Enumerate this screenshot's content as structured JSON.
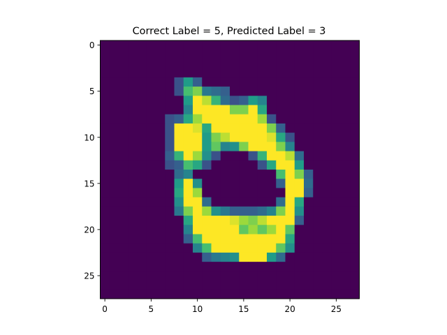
{
  "chart_data": {
    "type": "heatmap",
    "title": "Correct Label = 5, Predicted Label = 3",
    "xlabel": "",
    "ylabel": "",
    "xlim": [
      -0.5,
      27.5
    ],
    "ylim": [
      27.5,
      -0.5
    ],
    "xticks": [
      0,
      5,
      10,
      15,
      20,
      25
    ],
    "yticks": [
      0,
      5,
      10,
      15,
      20,
      25
    ],
    "xtick_labels": [
      "0",
      "5",
      "10",
      "15",
      "20",
      "25"
    ],
    "ytick_labels": [
      "0",
      "5",
      "10",
      "15",
      "20",
      "25"
    ],
    "grid": false,
    "colormap": "viridis",
    "value_range": [
      0,
      1
    ],
    "colormap_stops": [
      "#440154",
      "#46327e",
      "#365c8d",
      "#277f8e",
      "#1fa187",
      "#4ac16d",
      "#a0da39",
      "#fde725"
    ],
    "rows": 28,
    "cols": 28,
    "nonzero_pixels": [
      [
        4,
        8,
        0.25
      ],
      [
        4,
        9,
        0.55
      ],
      [
        4,
        10,
        0.3
      ],
      [
        5,
        8,
        0.25
      ],
      [
        5,
        9,
        0.7
      ],
      [
        5,
        10,
        0.8
      ],
      [
        5,
        11,
        0.4
      ],
      [
        5,
        12,
        0.35
      ],
      [
        5,
        13,
        0.3
      ],
      [
        6,
        9,
        0.55
      ],
      [
        6,
        10,
        1
      ],
      [
        6,
        11,
        0.9
      ],
      [
        6,
        12,
        0.65
      ],
      [
        6,
        13,
        0.35
      ],
      [
        6,
        14,
        0.25
      ],
      [
        6,
        15,
        0.3
      ],
      [
        6,
        16,
        0.55
      ],
      [
        6,
        17,
        0.45
      ],
      [
        7,
        9,
        0.45
      ],
      [
        7,
        10,
        1
      ],
      [
        7,
        11,
        1
      ],
      [
        7,
        12,
        1
      ],
      [
        7,
        13,
        1
      ],
      [
        7,
        14,
        0.8
      ],
      [
        7,
        15,
        0.8
      ],
      [
        7,
        16,
        1
      ],
      [
        7,
        17,
        0.6
      ],
      [
        8,
        7,
        0.25
      ],
      [
        8,
        8,
        0.3
      ],
      [
        8,
        9,
        0.6
      ],
      [
        8,
        10,
        0.85
      ],
      [
        8,
        11,
        1
      ],
      [
        8,
        12,
        1
      ],
      [
        8,
        13,
        1
      ],
      [
        8,
        14,
        1
      ],
      [
        8,
        15,
        1
      ],
      [
        8,
        16,
        1
      ],
      [
        8,
        17,
        0.85
      ],
      [
        8,
        18,
        0.25
      ],
      [
        9,
        7,
        0.25
      ],
      [
        9,
        8,
        1
      ],
      [
        9,
        9,
        1
      ],
      [
        9,
        10,
        0.95
      ],
      [
        9,
        11,
        0.6
      ],
      [
        9,
        12,
        1
      ],
      [
        9,
        13,
        1
      ],
      [
        9,
        14,
        1
      ],
      [
        9,
        15,
        1
      ],
      [
        9,
        16,
        1
      ],
      [
        9,
        17,
        1
      ],
      [
        9,
        18,
        0.8
      ],
      [
        9,
        19,
        0.3
      ],
      [
        10,
        7,
        0.25
      ],
      [
        10,
        8,
        1
      ],
      [
        10,
        9,
        1
      ],
      [
        10,
        10,
        1
      ],
      [
        10,
        11,
        0.55
      ],
      [
        10,
        12,
        0.8
      ],
      [
        10,
        13,
        0.9
      ],
      [
        10,
        14,
        1
      ],
      [
        10,
        15,
        1
      ],
      [
        10,
        16,
        1
      ],
      [
        10,
        17,
        1
      ],
      [
        10,
        18,
        0.95
      ],
      [
        10,
        19,
        0.6
      ],
      [
        10,
        20,
        0.25
      ],
      [
        11,
        7,
        0.25
      ],
      [
        11,
        8,
        1
      ],
      [
        11,
        9,
        1
      ],
      [
        11,
        10,
        1
      ],
      [
        11,
        11,
        0.55
      ],
      [
        11,
        12,
        0.75
      ],
      [
        11,
        13,
        0.45
      ],
      [
        11,
        14,
        0.5
      ],
      [
        11,
        15,
        0.8
      ],
      [
        11,
        16,
        1
      ],
      [
        11,
        17,
        1
      ],
      [
        11,
        18,
        1
      ],
      [
        11,
        19,
        0.8
      ],
      [
        11,
        20,
        0.45
      ],
      [
        12,
        7,
        0.3
      ],
      [
        12,
        8,
        0.65
      ],
      [
        12,
        9,
        1
      ],
      [
        12,
        10,
        0.85
      ],
      [
        12,
        11,
        0.5
      ],
      [
        12,
        12,
        0.25
      ],
      [
        12,
        16,
        0.25
      ],
      [
        12,
        17,
        0.65
      ],
      [
        12,
        18,
        1
      ],
      [
        12,
        19,
        1
      ],
      [
        12,
        20,
        0.9
      ],
      [
        12,
        21,
        0.35
      ],
      [
        13,
        7,
        0.25
      ],
      [
        13,
        8,
        0.3
      ],
      [
        13,
        9,
        0.7
      ],
      [
        13,
        10,
        0.6
      ],
      [
        13,
        11,
        0.25
      ],
      [
        13,
        17,
        0.25
      ],
      [
        13,
        18,
        0.6
      ],
      [
        13,
        19,
        1
      ],
      [
        13,
        20,
        1
      ],
      [
        13,
        21,
        0.55
      ],
      [
        14,
        8,
        0.35
      ],
      [
        14,
        9,
        0.45
      ],
      [
        14,
        19,
        0.7
      ],
      [
        14,
        20,
        1
      ],
      [
        14,
        21,
        0.8
      ],
      [
        14,
        22,
        0.3
      ],
      [
        15,
        8,
        0.55
      ],
      [
        15,
        9,
        1
      ],
      [
        15,
        10,
        0.5
      ],
      [
        15,
        19,
        0.3
      ],
      [
        15,
        20,
        1
      ],
      [
        15,
        21,
        1
      ],
      [
        15,
        22,
        0.35
      ],
      [
        16,
        8,
        0.6
      ],
      [
        16,
        9,
        1
      ],
      [
        16,
        10,
        0.85
      ],
      [
        16,
        20,
        1
      ],
      [
        16,
        21,
        1
      ],
      [
        16,
        22,
        0.3
      ],
      [
        17,
        8,
        0.5
      ],
      [
        17,
        9,
        1
      ],
      [
        17,
        10,
        1
      ],
      [
        17,
        11,
        0.35
      ],
      [
        17,
        19,
        0.35
      ],
      [
        17,
        20,
        1
      ],
      [
        17,
        21,
        0.6
      ],
      [
        18,
        8,
        0.4
      ],
      [
        18,
        9,
        0.8
      ],
      [
        18,
        10,
        1
      ],
      [
        18,
        11,
        0.85
      ],
      [
        18,
        12,
        0.5
      ],
      [
        18,
        13,
        0.4
      ],
      [
        18,
        14,
        0.3
      ],
      [
        18,
        15,
        0.3
      ],
      [
        18,
        16,
        0.3
      ],
      [
        18,
        17,
        0.35
      ],
      [
        18,
        18,
        0.45
      ],
      [
        18,
        19,
        0.8
      ],
      [
        18,
        20,
        1
      ],
      [
        18,
        21,
        0.5
      ],
      [
        19,
        9,
        0.6
      ],
      [
        19,
        10,
        1
      ],
      [
        19,
        11,
        1
      ],
      [
        19,
        12,
        1
      ],
      [
        19,
        13,
        1
      ],
      [
        19,
        14,
        0.95
      ],
      [
        19,
        15,
        0.85
      ],
      [
        19,
        16,
        0.8
      ],
      [
        19,
        17,
        0.9
      ],
      [
        19,
        18,
        1
      ],
      [
        19,
        19,
        1
      ],
      [
        19,
        20,
        1
      ],
      [
        19,
        21,
        0.3
      ],
      [
        20,
        9,
        0.45
      ],
      [
        20,
        10,
        1
      ],
      [
        20,
        11,
        1
      ],
      [
        20,
        12,
        1
      ],
      [
        20,
        13,
        1
      ],
      [
        20,
        14,
        1
      ],
      [
        20,
        15,
        0.75
      ],
      [
        20,
        16,
        0.85
      ],
      [
        20,
        17,
        0.75
      ],
      [
        20,
        18,
        0.85
      ],
      [
        20,
        19,
        1
      ],
      [
        20,
        20,
        0.75
      ],
      [
        21,
        9,
        0.3
      ],
      [
        21,
        10,
        0.7
      ],
      [
        21,
        11,
        1
      ],
      [
        21,
        12,
        1
      ],
      [
        21,
        13,
        1
      ],
      [
        21,
        14,
        1
      ],
      [
        21,
        15,
        1
      ],
      [
        21,
        16,
        1
      ],
      [
        21,
        17,
        1
      ],
      [
        21,
        18,
        1
      ],
      [
        21,
        19,
        1
      ],
      [
        21,
        20,
        0.6
      ],
      [
        22,
        10,
        0.45
      ],
      [
        22,
        11,
        0.7
      ],
      [
        22,
        12,
        1
      ],
      [
        22,
        13,
        1
      ],
      [
        22,
        14,
        1
      ],
      [
        22,
        15,
        1
      ],
      [
        22,
        16,
        1
      ],
      [
        22,
        17,
        1
      ],
      [
        22,
        18,
        1
      ],
      [
        22,
        19,
        0.75
      ],
      [
        22,
        20,
        0.5
      ],
      [
        23,
        11,
        0.3
      ],
      [
        23,
        12,
        0.4
      ],
      [
        23,
        13,
        0.45
      ],
      [
        23,
        14,
        0.5
      ],
      [
        23,
        15,
        1
      ],
      [
        23,
        16,
        1
      ],
      [
        23,
        17,
        1
      ],
      [
        23,
        18,
        0.55
      ],
      [
        23,
        19,
        0.35
      ]
    ]
  }
}
